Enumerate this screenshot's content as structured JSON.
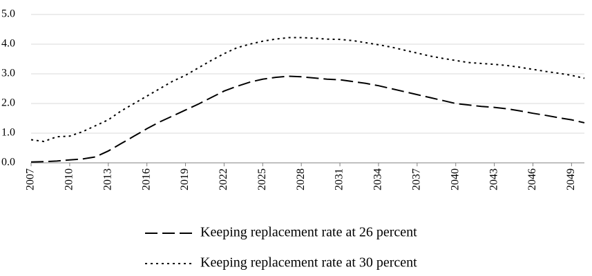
{
  "chart_data": {
    "type": "line",
    "x": [
      2007,
      2008,
      2009,
      2010,
      2011,
      2012,
      2013,
      2014,
      2015,
      2016,
      2017,
      2018,
      2019,
      2020,
      2021,
      2022,
      2023,
      2024,
      2025,
      2026,
      2027,
      2028,
      2029,
      2030,
      2031,
      2032,
      2033,
      2034,
      2035,
      2036,
      2037,
      2038,
      2039,
      2040,
      2041,
      2042,
      2043,
      2044,
      2045,
      2046,
      2047,
      2048,
      2049,
      2050
    ],
    "xlim": [
      2007,
      2050
    ],
    "xticks": [
      2007,
      2010,
      2013,
      2016,
      2019,
      2022,
      2025,
      2028,
      2031,
      2034,
      2037,
      2040,
      2043,
      2046,
      2049
    ],
    "ylim": [
      0,
      5
    ],
    "yticks": [
      {
        "value": 0,
        "label": "0.0"
      },
      {
        "value": 1,
        "label": "1.0"
      },
      {
        "value": 2,
        "label": "2.0"
      },
      {
        "value": 3,
        "label": "3.0"
      },
      {
        "value": 4,
        "label": "4.0"
      },
      {
        "value": 5,
        "label": "5.0"
      }
    ],
    "grid": true,
    "legend": "bottom",
    "series": [
      {
        "name": "Keeping replacement rate at 26 percent",
        "color": "#000000",
        "dash": "dashed",
        "values": [
          0.03,
          0.04,
          0.06,
          0.1,
          0.13,
          0.2,
          0.4,
          0.65,
          0.9,
          1.15,
          1.38,
          1.58,
          1.78,
          1.98,
          2.2,
          2.42,
          2.58,
          2.72,
          2.82,
          2.88,
          2.92,
          2.9,
          2.86,
          2.82,
          2.8,
          2.74,
          2.68,
          2.6,
          2.5,
          2.4,
          2.3,
          2.2,
          2.1,
          2.0,
          1.95,
          1.9,
          1.87,
          1.82,
          1.75,
          1.67,
          1.6,
          1.52,
          1.45,
          1.35
        ]
      },
      {
        "name": "Keeping replacement rate at 30 percent",
        "color": "#000000",
        "dash": "dotted",
        "values": [
          0.78,
          0.72,
          0.88,
          0.9,
          1.05,
          1.25,
          1.45,
          1.75,
          2.0,
          2.25,
          2.5,
          2.75,
          2.95,
          3.2,
          3.45,
          3.68,
          3.88,
          4.0,
          4.1,
          4.17,
          4.22,
          4.22,
          4.2,
          4.17,
          4.16,
          4.12,
          4.05,
          3.98,
          3.9,
          3.8,
          3.7,
          3.6,
          3.52,
          3.45,
          3.38,
          3.35,
          3.32,
          3.28,
          3.22,
          3.15,
          3.08,
          3.02,
          2.95,
          2.85
        ]
      }
    ]
  }
}
